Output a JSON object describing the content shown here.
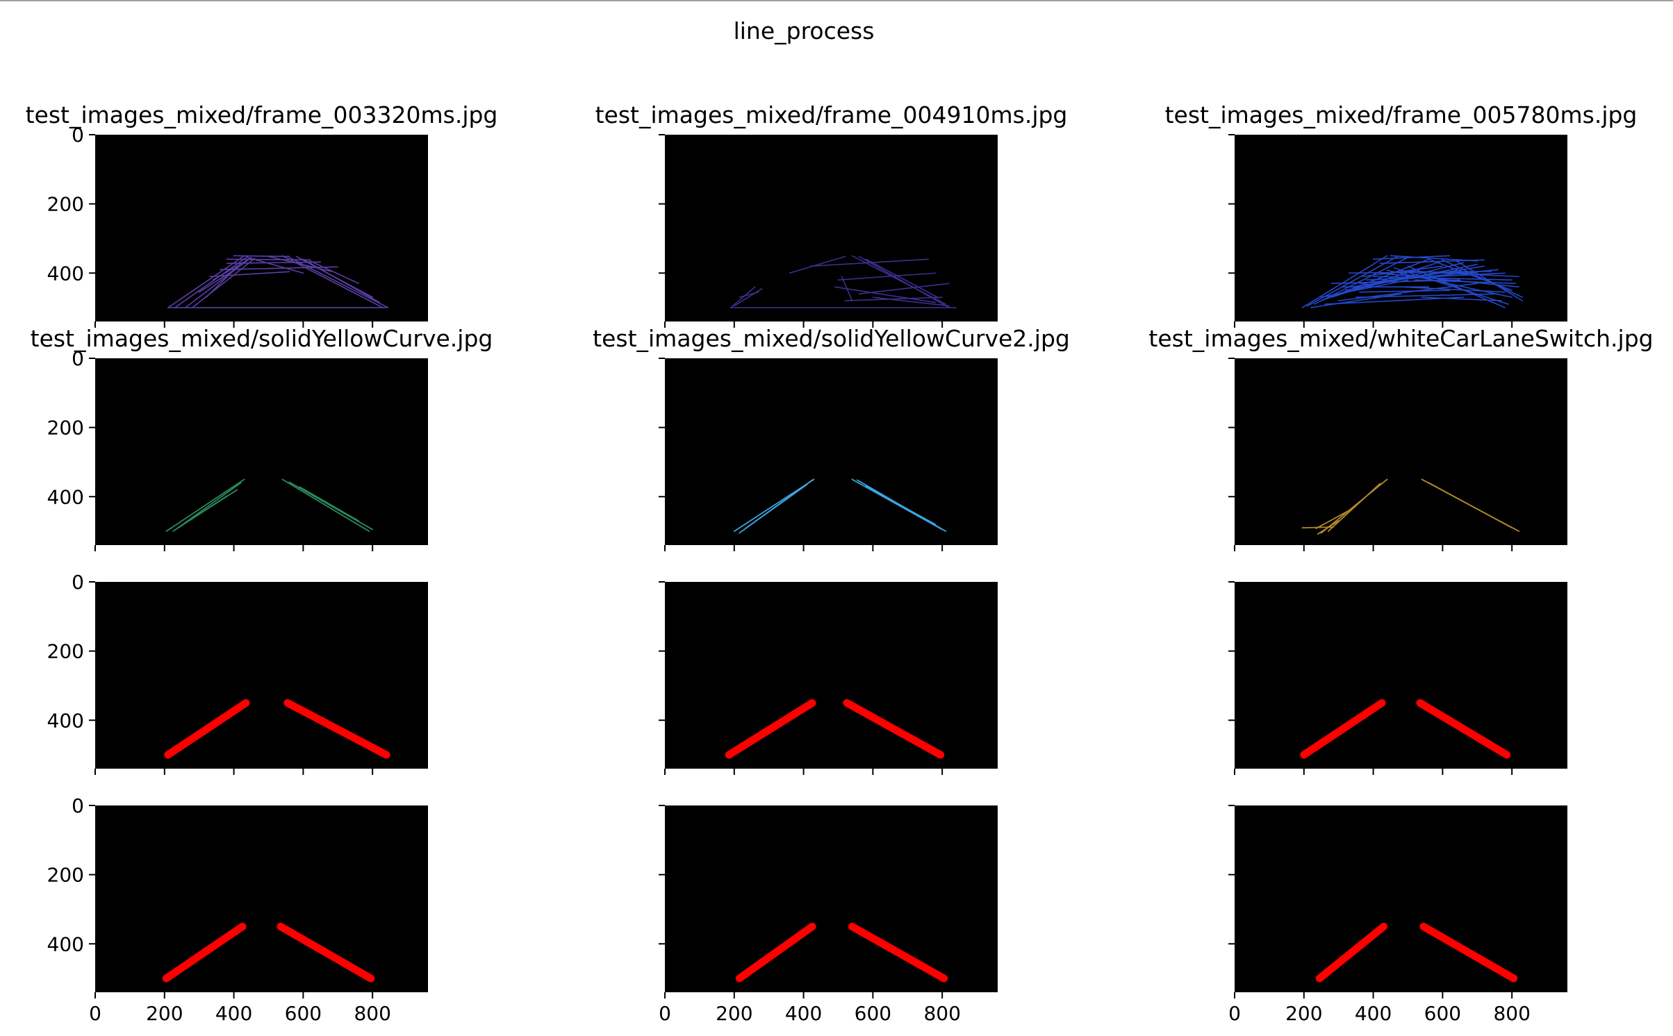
{
  "figure": {
    "title": "line_process"
  },
  "chart_data": {
    "type": "image-grid",
    "rows": 4,
    "cols": 3,
    "image_width": 960,
    "image_height": 540,
    "xlim": [
      0,
      960
    ],
    "ylim": [
      540,
      0
    ],
    "xticks": [
      0,
      200,
      400,
      600,
      800
    ],
    "yticks": [
      0,
      200,
      400
    ],
    "columns": [
      {
        "title_row1": "test_images_mixed/frame_003320ms.jpg",
        "title_row2": "test_images_mixed/solidYellowCurve.jpg",
        "row1_color": "#5a3fa6",
        "row2_color": "#2a8a5c",
        "row1_segments": [
          [
            210,
            500,
            430,
            350
          ],
          [
            230,
            500,
            440,
            352
          ],
          [
            260,
            500,
            450,
            355
          ],
          [
            280,
            500,
            460,
            358
          ],
          [
            320,
            470,
            420,
            372
          ],
          [
            340,
            420,
            440,
            362
          ],
          [
            300,
            455,
            410,
            385
          ],
          [
            540,
            350,
            830,
            500
          ],
          [
            560,
            355,
            845,
            500
          ],
          [
            580,
            352,
            800,
            470
          ],
          [
            600,
            360,
            820,
            485
          ],
          [
            620,
            365,
            760,
            430
          ],
          [
            360,
            390,
            700,
            382
          ],
          [
            380,
            372,
            650,
            368
          ],
          [
            400,
            350,
            560,
            352
          ],
          [
            380,
            360,
            620,
            362
          ],
          [
            330,
            410,
            560,
            396
          ],
          [
            210,
            500,
            840,
            500
          ],
          [
            440,
            355,
            600,
            400
          ],
          [
            500,
            352,
            680,
            395
          ]
        ],
        "row2_segments": [
          [
            205,
            500,
            430,
            350
          ],
          [
            225,
            500,
            420,
            360
          ],
          [
            240,
            490,
            380,
            398
          ],
          [
            270,
            470,
            410,
            380
          ],
          [
            540,
            350,
            790,
            500
          ],
          [
            560,
            358,
            800,
            495
          ],
          [
            590,
            372,
            760,
            470
          ]
        ],
        "row3_segments": [
          [
            210,
            500,
            435,
            350
          ],
          [
            555,
            350,
            840,
            500
          ]
        ],
        "row4_segments": [
          [
            205,
            500,
            425,
            350
          ],
          [
            535,
            350,
            795,
            500
          ]
        ]
      },
      {
        "title_row1": "test_images_mixed/frame_004910ms.jpg",
        "title_row2": "test_images_mixed/solidYellowCurve2.jpg",
        "row1_color": "#3d2f8f",
        "row2_color": "#3aa6e0",
        "row1_segments": [
          [
            190,
            500,
            840,
            500
          ],
          [
            540,
            350,
            810,
            490
          ],
          [
            560,
            352,
            820,
            500
          ],
          [
            580,
            360,
            790,
            472
          ],
          [
            360,
            400,
            520,
            352
          ],
          [
            420,
            380,
            760,
            360
          ],
          [
            500,
            420,
            780,
            400
          ],
          [
            560,
            460,
            820,
            430
          ],
          [
            520,
            480,
            800,
            470
          ],
          [
            490,
            440,
            780,
            485
          ],
          [
            510,
            410,
            540,
            480
          ],
          [
            190,
            500,
            260,
            440
          ],
          [
            200,
            495,
            280,
            445
          ],
          [
            215,
            470,
            270,
            455
          ],
          [
            600,
            470,
            820,
            495
          ]
        ],
        "row2_segments": [
          [
            200,
            500,
            430,
            350
          ],
          [
            215,
            505,
            425,
            352
          ],
          [
            235,
            490,
            410,
            365
          ],
          [
            540,
            350,
            800,
            495
          ],
          [
            555,
            352,
            810,
            500
          ],
          [
            580,
            370,
            780,
            480
          ]
        ],
        "row3_segments": [
          [
            185,
            500,
            425,
            350
          ],
          [
            525,
            350,
            795,
            500
          ]
        ],
        "row4_segments": [
          [
            215,
            500,
            425,
            350
          ],
          [
            540,
            350,
            805,
            500
          ]
        ]
      },
      {
        "title_row1": "test_images_mixed/frame_005780ms.jpg",
        "title_row2": "test_images_mixed/whiteCarLaneSwitch.jpg",
        "row1_color": "#2448cc",
        "row2_color": "#b08a25",
        "row1_segments": [
          [
            195,
            500,
            440,
            350
          ],
          [
            210,
            495,
            470,
            352
          ],
          [
            230,
            490,
            500,
            355
          ],
          [
            250,
            480,
            560,
            360
          ],
          [
            280,
            470,
            600,
            365
          ],
          [
            300,
            460,
            660,
            370
          ],
          [
            320,
            450,
            700,
            375
          ],
          [
            340,
            440,
            720,
            380
          ],
          [
            360,
            430,
            760,
            390
          ],
          [
            380,
            420,
            780,
            400
          ],
          [
            400,
            410,
            800,
            420
          ],
          [
            420,
            400,
            820,
            440
          ],
          [
            440,
            392,
            800,
            470
          ],
          [
            460,
            385,
            790,
            490
          ],
          [
            500,
            380,
            780,
            500
          ],
          [
            560,
            360,
            800,
            450
          ],
          [
            600,
            362,
            830,
            470
          ],
          [
            640,
            365,
            830,
            480
          ],
          [
            300,
            480,
            700,
            430
          ],
          [
            260,
            490,
            660,
            470
          ],
          [
            350,
            470,
            760,
            460
          ],
          [
            400,
            360,
            620,
            350
          ],
          [
            420,
            372,
            720,
            362
          ],
          [
            330,
            400,
            740,
            395
          ],
          [
            280,
            430,
            650,
            420
          ],
          [
            480,
            440,
            780,
            455
          ],
          [
            520,
            420,
            810,
            430
          ],
          [
            370,
            410,
            600,
            380
          ],
          [
            250,
            470,
            500,
            420
          ],
          [
            540,
            470,
            770,
            480
          ],
          [
            450,
            350,
            700,
            365
          ],
          [
            310,
            440,
            560,
            440
          ],
          [
            360,
            455,
            620,
            450
          ],
          [
            220,
            500,
            480,
            460
          ],
          [
            600,
            400,
            820,
            410
          ],
          [
            500,
            395,
            700,
            400
          ]
        ],
        "row2_segments": [
          [
            195,
            490,
            285,
            488
          ],
          [
            250,
            505,
            440,
            350
          ],
          [
            270,
            500,
            420,
            362
          ],
          [
            235,
            492,
            330,
            440
          ],
          [
            240,
            508,
            300,
            470
          ],
          [
            540,
            350,
            820,
            500
          ],
          [
            560,
            360,
            800,
            490
          ]
        ],
        "row3_segments": [
          [
            200,
            500,
            425,
            350
          ],
          [
            535,
            350,
            785,
            500
          ]
        ],
        "row4_segments": [
          [
            245,
            500,
            430,
            350
          ],
          [
            545,
            350,
            805,
            500
          ]
        ]
      }
    ],
    "rows_3_4_color": "#ff0000"
  }
}
